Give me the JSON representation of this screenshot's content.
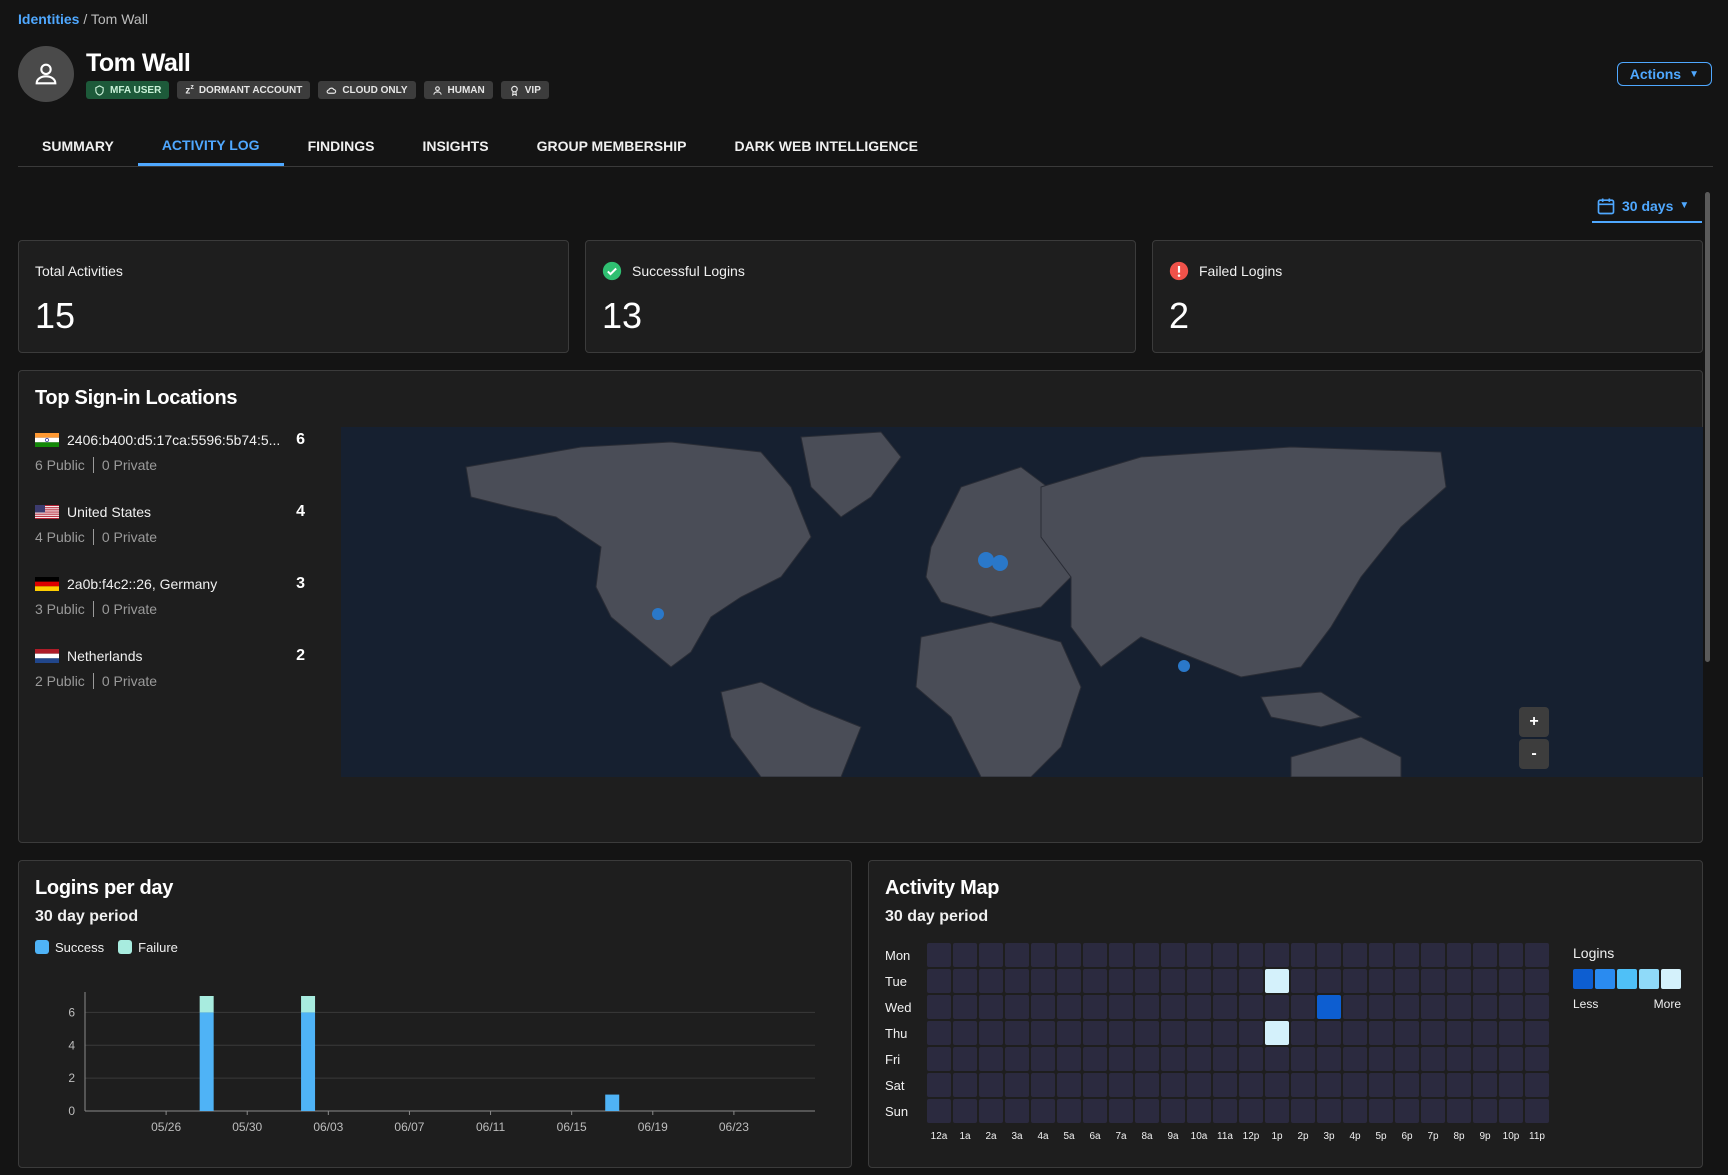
{
  "breadcrumb": {
    "parent": "Identities",
    "separator": "/",
    "current": "Tom Wall"
  },
  "user": {
    "name": "Tom Wall"
  },
  "badges": [
    {
      "label": "MFA USER",
      "icon": "shield-icon"
    },
    {
      "label": "DORMANT ACCOUNT",
      "icon": "sleep-icon"
    },
    {
      "label": "CLOUD ONLY",
      "icon": "cloud-icon"
    },
    {
      "label": "HUMAN",
      "icon": "person-icon"
    },
    {
      "label": "VIP",
      "icon": "award-icon"
    }
  ],
  "actions_label": "Actions",
  "tabs": [
    {
      "label": "SUMMARY",
      "active": false
    },
    {
      "label": "ACTIVITY LOG",
      "active": true
    },
    {
      "label": "FINDINGS",
      "active": false
    },
    {
      "label": "INSIGHTS",
      "active": false
    },
    {
      "label": "GROUP MEMBERSHIP",
      "active": false
    },
    {
      "label": "DARK WEB INTELLIGENCE",
      "active": false
    }
  ],
  "date_filter": "30 days",
  "stats": [
    {
      "title": "Total Activities",
      "value": "15",
      "icon": ""
    },
    {
      "title": "Successful Logins",
      "value": "13",
      "icon": "check-circle-icon"
    },
    {
      "title": "Failed Logins",
      "value": "2",
      "icon": "alert-circle-icon"
    }
  ],
  "locations": {
    "title": "Top Sign-in Locations",
    "items": [
      {
        "name": "2406:b400:d5:17ca:5596:5b74:5...",
        "count": "6",
        "public": "6 Public",
        "private": "0 Private",
        "flag": "india"
      },
      {
        "name": "United States",
        "count": "4",
        "public": "4 Public",
        "private": "0 Private",
        "flag": "usa"
      },
      {
        "name": "2a0b:f4c2::26, Germany",
        "count": "3",
        "public": "3 Public",
        "private": "0 Private",
        "flag": "germany"
      },
      {
        "name": "Netherlands",
        "count": "2",
        "public": "2 Public",
        "private": "0 Private",
        "flag": "netherlands"
      }
    ],
    "zoom_in": "+",
    "zoom_out": "-"
  },
  "logins": {
    "title": "Logins per day",
    "subtitle": "30 day period",
    "legend": {
      "success": "Success",
      "failure": "Failure"
    },
    "colors": {
      "success": "#4fb3f6",
      "failure": "#a8ecdf"
    }
  },
  "chart_data": {
    "type": "bar",
    "stacked": true,
    "x_ticks": [
      "05/26",
      "05/30",
      "06/03",
      "06/07",
      "06/11",
      "06/15",
      "06/19",
      "06/23"
    ],
    "y_ticks": [
      0,
      2,
      4,
      6
    ],
    "ylim": [
      0,
      7
    ],
    "categories": [
      "05/28",
      "06/02",
      "06/17"
    ],
    "series": [
      {
        "name": "Success",
        "values": [
          6,
          6,
          1
        ]
      },
      {
        "name": "Failure",
        "values": [
          1,
          1,
          0
        ]
      }
    ]
  },
  "activity_map": {
    "title": "Activity Map",
    "subtitle": "30 day period",
    "days": [
      "Mon",
      "Tue",
      "Wed",
      "Thu",
      "Fri",
      "Sat",
      "Sun"
    ],
    "hours": [
      "12a",
      "1a",
      "2a",
      "3a",
      "4a",
      "5a",
      "6a",
      "7a",
      "8a",
      "9a",
      "10a",
      "11a",
      "12p",
      "1p",
      "2p",
      "3p",
      "4p",
      "5p",
      "6p",
      "7p",
      "8p",
      "9p",
      "10p",
      "11p"
    ],
    "cells": [
      {
        "day": "Tue",
        "hour": "1p",
        "level": 5
      },
      {
        "day": "Wed",
        "hour": "3p",
        "level": 1
      },
      {
        "day": "Thu",
        "hour": "1p",
        "level": 5
      }
    ],
    "legend_title": "Logins",
    "legend_less": "Less",
    "legend_more": "More",
    "level_colors": [
      "#0d5ed1",
      "#2a8bf0",
      "#4fc0f7",
      "#8fdaf9",
      "#d4f1fb"
    ],
    "empty_color": "#2b2a3f"
  }
}
